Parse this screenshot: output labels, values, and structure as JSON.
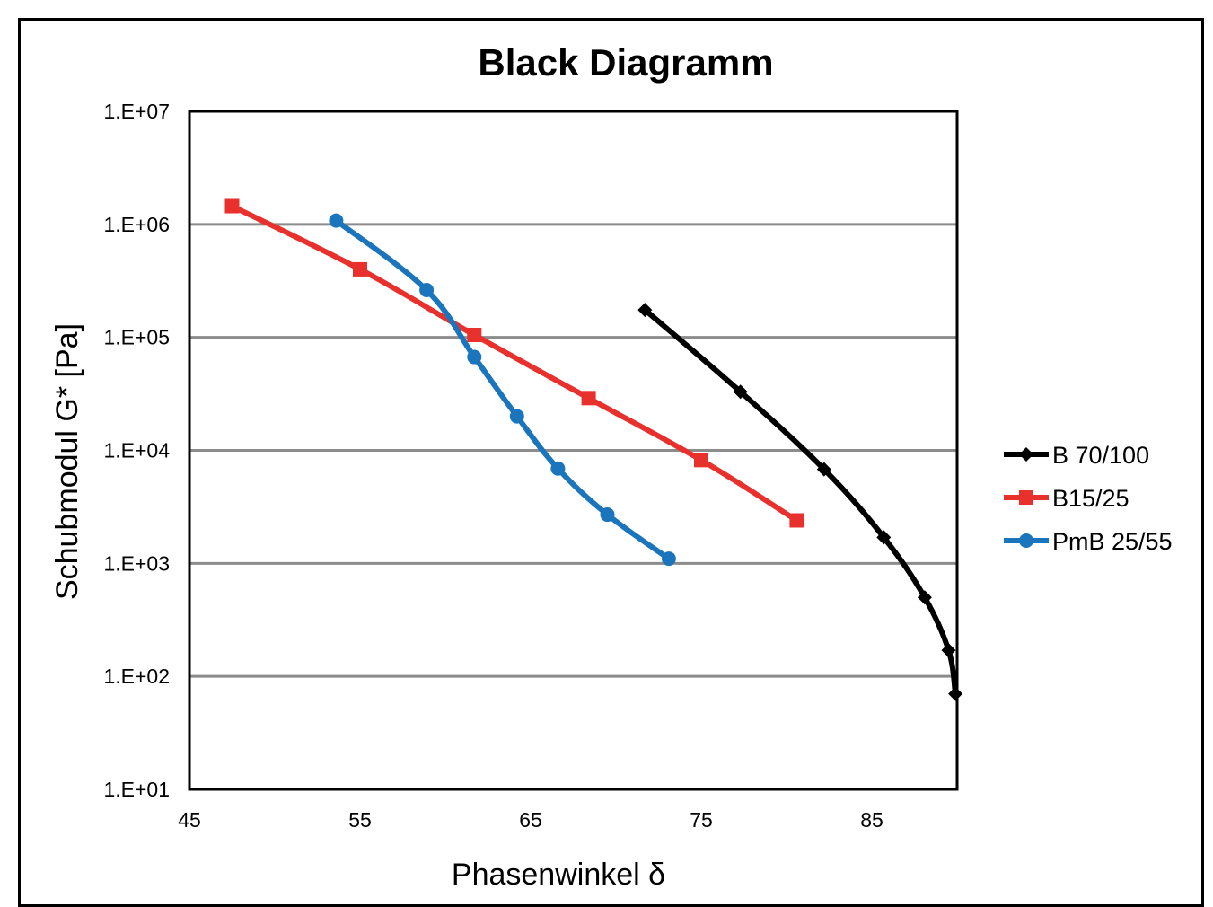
{
  "chart_data": {
    "type": "line",
    "title": "Black Diagramm",
    "xlabel": "Phasenwinkel  δ",
    "ylabel": "Schubmodul G* [Pa]",
    "xlim": [
      45,
      90
    ],
    "ylim": [
      10,
      10000000
    ],
    "yscale": "log",
    "xticks": [
      45,
      55,
      65,
      75,
      85
    ],
    "xtick_labels": [
      "45",
      "55",
      "65",
      "75",
      "85"
    ],
    "yticks": [
      10,
      100,
      1000,
      10000,
      100000,
      1000000,
      10000000
    ],
    "ytick_labels": [
      "1.E+01",
      "1.E+02",
      "1.E+03",
      "1.E+04",
      "1.E+05",
      "1.E+06",
      "1.E+07"
    ],
    "grid": "horizontal",
    "legend_position": "right",
    "series": [
      {
        "name": "B 70/100",
        "color": "#000000",
        "marker": "diamond",
        "x": [
          71.7,
          77.3,
          82.2,
          85.7,
          88.1,
          89.5,
          89.9
        ],
        "y": [
          175000,
          33000,
          6800,
          1700,
          500,
          170,
          70
        ]
      },
      {
        "name": "B15/25",
        "color": "#e8302c",
        "marker": "square",
        "x": [
          47.5,
          55.0,
          61.7,
          68.4,
          75.0,
          80.6
        ],
        "y": [
          1450000,
          400000,
          105000,
          29000,
          8200,
          2400
        ]
      },
      {
        "name": "PmB 25/55",
        "color": "#1b75bc",
        "marker": "circle",
        "x": [
          53.6,
          58.9,
          61.7,
          64.2,
          66.6,
          69.5,
          73.1
        ],
        "y": [
          1080000,
          262000,
          67000,
          20000,
          6900,
          2700,
          1100
        ]
      }
    ]
  }
}
